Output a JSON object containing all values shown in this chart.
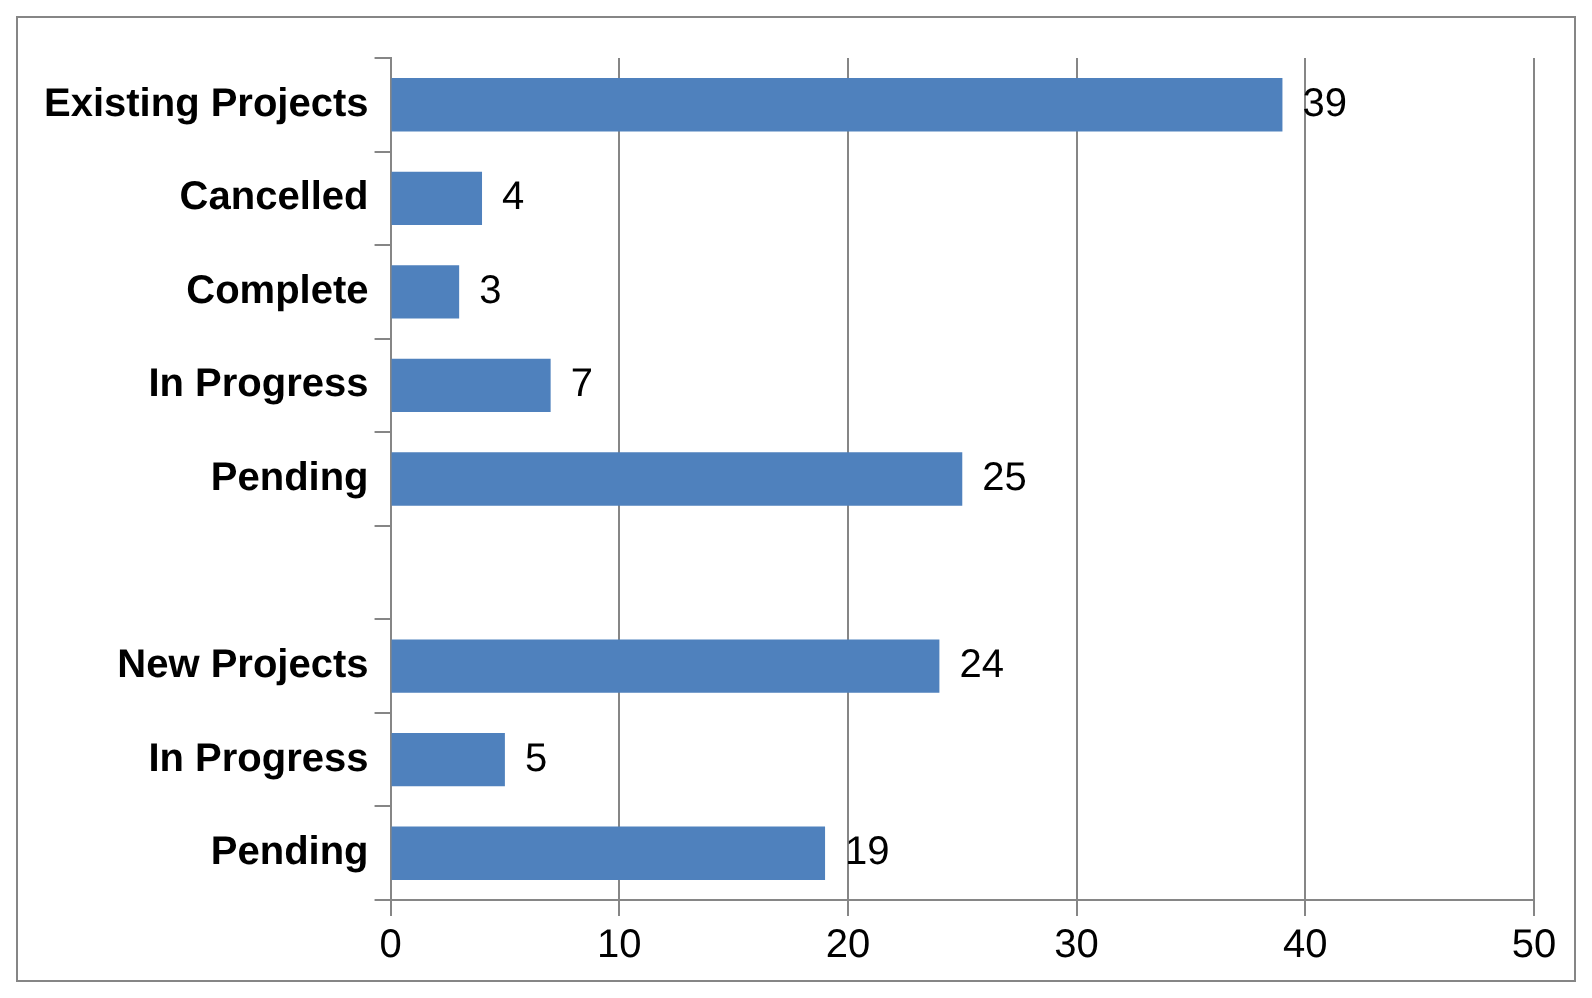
{
  "chart_data": {
    "type": "bar",
    "orientation": "horizontal",
    "categories": [
      "Existing Projects",
      "Cancelled",
      "Complete",
      "In Progress",
      "Pending",
      null,
      "New Projects",
      "In Progress",
      "Pending"
    ],
    "values": [
      39,
      4,
      3,
      7,
      25,
      null,
      24,
      5,
      19
    ],
    "color": "#4f81bd",
    "xlim": [
      0,
      50
    ],
    "xticks": [
      0,
      10,
      20,
      30,
      40,
      50
    ],
    "grid": "x",
    "data_labels": true,
    "legend": false
  }
}
